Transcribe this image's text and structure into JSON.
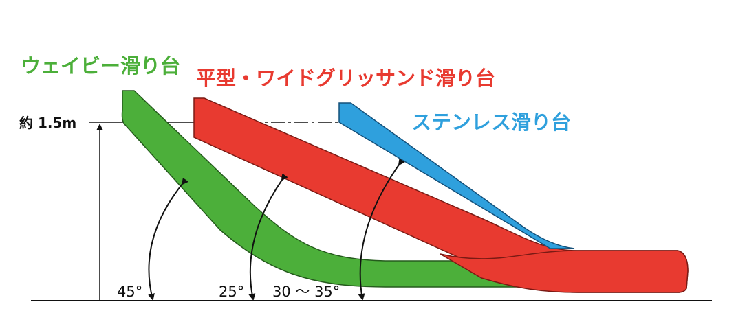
{
  "slides": [
    {
      "label": "ウェイビー滑り台",
      "angle": "45°"
    },
    {
      "label": "平型・ワイドグリッサンド滑り台",
      "angle": "25°"
    },
    {
      "label": "ステンレス滑り台",
      "angle": "30 ～ 35°"
    }
  ],
  "height_label": "約 1.5m"
}
